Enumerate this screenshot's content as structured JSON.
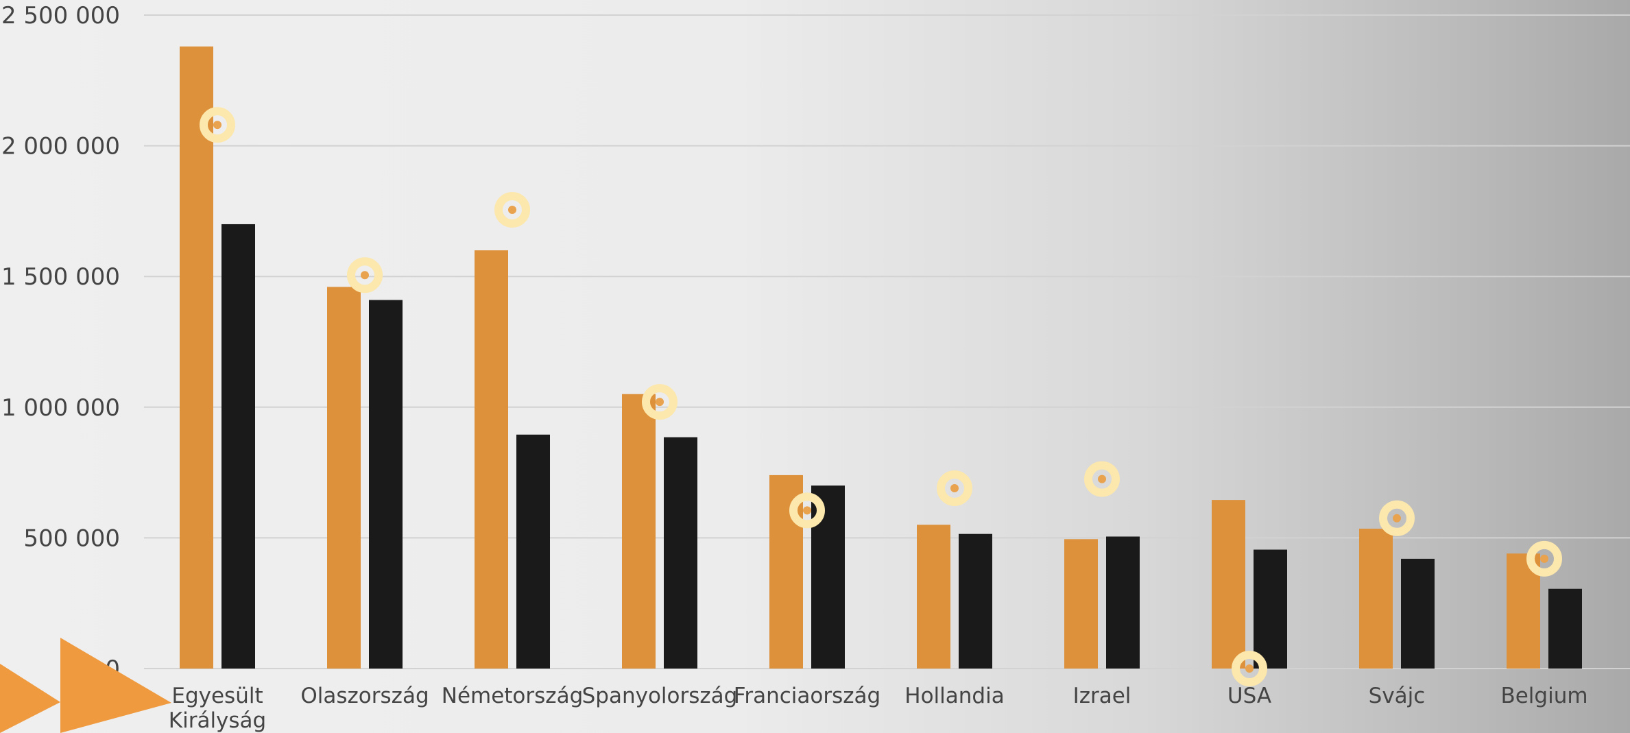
{
  "colors": {
    "series_a": "#de913b",
    "series_b": "#1a1a1a",
    "marker_ring": "#fce7ac",
    "marker_center": "#e9a24e",
    "decor_arrow": "#ef9a3f"
  },
  "chart_data": {
    "type": "bar",
    "title": "",
    "xlabel": "",
    "ylabel": "",
    "ylim": [
      0,
      2500000
    ],
    "y_ticks": [
      0,
      500000,
      1000000,
      1500000,
      2000000,
      2500000
    ],
    "y_tick_labels": [
      "0",
      "500 000",
      "1 000 000",
      "1 500 000",
      "2 000 000",
      "2 500 000"
    ],
    "categories": [
      [
        "Egyesült",
        "Királyság"
      ],
      [
        "Olaszország"
      ],
      [
        "Németország"
      ],
      [
        "Spanyolország"
      ],
      [
        "Franciaország"
      ],
      [
        "Hollandia"
      ],
      [
        "Izrael"
      ],
      [
        "USA"
      ],
      [
        "Svájc"
      ],
      [
        "Belgium"
      ]
    ],
    "series": [
      {
        "values": [
          2380000,
          1460000,
          1600000,
          1050000,
          740000,
          550000,
          495000,
          645000,
          535000,
          440000
        ]
      },
      {
        "values": [
          1700000,
          1410000,
          895000,
          885000,
          700000,
          515000,
          505000,
          455000,
          420000,
          305000
        ]
      }
    ],
    "markers": {
      "values": [
        2080000,
        1505000,
        1755000,
        1020000,
        605000,
        690000,
        725000,
        0,
        575000,
        420000
      ]
    },
    "grid": true,
    "legend": "none"
  }
}
